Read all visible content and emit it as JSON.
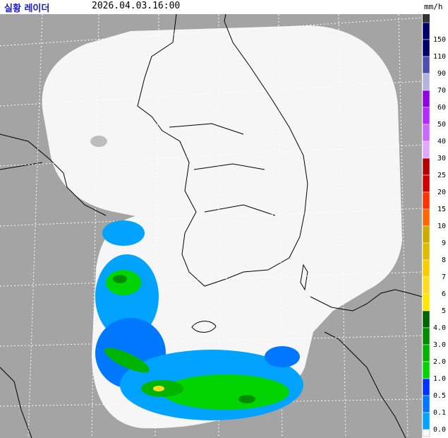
{
  "header": {
    "title": "실황 레이더",
    "time": "2026.04.03.16:00",
    "unit": "mm/h"
  },
  "legend": [
    {
      "label": "150",
      "color": "#00036b"
    },
    {
      "label": "110",
      "color": "#00036b"
    },
    {
      "label": "90",
      "color": "#4c4eb1"
    },
    {
      "label": "70",
      "color": "#b3b4de"
    },
    {
      "label": "60",
      "color": "#9300e4"
    },
    {
      "label": "50",
      "color": "#b329ff"
    },
    {
      "label": "40",
      "color": "#c969ff"
    },
    {
      "label": "30",
      "color": "#e0a9ff"
    },
    {
      "label": "25",
      "color": "#b40000"
    },
    {
      "label": "20",
      "color": "#d20000"
    },
    {
      "label": "15",
      "color": "#ff3300"
    },
    {
      "label": "10",
      "color": "#ff6600"
    },
    {
      "label": "9",
      "color": "#ccaa00"
    },
    {
      "label": "8",
      "color": "#e0b900"
    },
    {
      "label": "7",
      "color": "#f9cd00"
    },
    {
      "label": "6",
      "color": "#ffdc1f"
    },
    {
      "label": "5",
      "color": "#ffe600"
    },
    {
      "label": "4.0",
      "color": "#006600"
    },
    {
      "label": "3.0",
      "color": "#008c00"
    },
    {
      "label": "2.0",
      "color": "#00b400"
    },
    {
      "label": "1.0",
      "color": "#00d500"
    },
    {
      "label": "0.5",
      "color": "#0033ff"
    },
    {
      "label": "0.1",
      "color": "#0077ff"
    },
    {
      "label": "0.0",
      "color": "#00a3ff"
    }
  ]
}
